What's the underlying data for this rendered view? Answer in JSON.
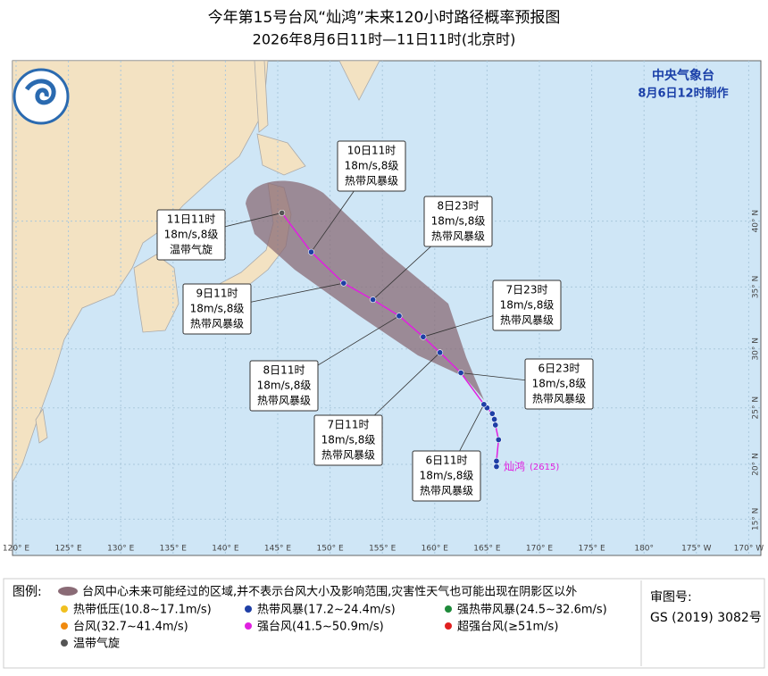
{
  "header": {
    "title": "今年第15号台风“灿鸿”未来120小时路径概率预报图",
    "subtitle": "2026年8月6日11时—11日11时(北京时)"
  },
  "agency": {
    "name": "中央气象台",
    "issued": "8月6日12时制作"
  },
  "storm": {
    "name": "灿鸿",
    "code": "(2615)"
  },
  "map": {
    "lon_ticks": [
      {
        "value": 120,
        "label": "120° E"
      },
      {
        "value": 125,
        "label": "125° E"
      },
      {
        "value": 130,
        "label": "130° E"
      },
      {
        "value": 135,
        "label": "135° E"
      },
      {
        "value": 140,
        "label": "140° E"
      },
      {
        "value": 145,
        "label": "145° E"
      },
      {
        "value": 150,
        "label": "150° E"
      },
      {
        "value": 155,
        "label": "155° E"
      },
      {
        "value": 160,
        "label": "160° E"
      },
      {
        "value": 165,
        "label": "165° E"
      },
      {
        "value": 170,
        "label": "170° E"
      },
      {
        "value": 175,
        "label": "175° E"
      },
      {
        "value": 180,
        "label": "180°"
      },
      {
        "value": 185,
        "label": "175° W"
      },
      {
        "value": 190,
        "label": "170° W"
      }
    ],
    "lat_ticks": [
      {
        "value": 15,
        "label": "15° N"
      },
      {
        "value": 20,
        "label": "20° N"
      },
      {
        "value": 25,
        "label": "25° N"
      },
      {
        "value": 30,
        "label": "30° N"
      },
      {
        "value": 35,
        "label": "35° N"
      },
      {
        "value": 40,
        "label": "40° N"
      }
    ],
    "track_color": "#e020e0",
    "track": [
      {
        "lon": 165.9,
        "lat": 19.8,
        "color": "#1f3fa6"
      },
      {
        "lon": 165.9,
        "lat": 20.3,
        "color": "#1f3fa6"
      },
      {
        "lon": 166.1,
        "lat": 22.2,
        "color": "#1f3fa6"
      },
      {
        "lon": 165.8,
        "lat": 23.5,
        "color": "#1f3fa6"
      },
      {
        "lon": 165.7,
        "lat": 24.0,
        "color": "#1f3fa6"
      },
      {
        "lon": 165.5,
        "lat": 24.5,
        "color": "#1f3fa6"
      },
      {
        "lon": 165.0,
        "lat": 25.0,
        "color": "#1f3fa6"
      },
      {
        "lon": 164.7,
        "lat": 25.3,
        "color": "#1f3fa6"
      },
      {
        "lon": 162.5,
        "lat": 28.0,
        "color": "#1f3fa6"
      },
      {
        "lon": 160.5,
        "lat": 29.7,
        "color": "#1f3fa6"
      },
      {
        "lon": 158.9,
        "lat": 31.0,
        "color": "#1f3fa6"
      },
      {
        "lon": 156.6,
        "lat": 32.7,
        "color": "#1f3fa6"
      },
      {
        "lon": 154.1,
        "lat": 34.0,
        "color": "#1f3fa6"
      },
      {
        "lon": 151.3,
        "lat": 35.3,
        "color": "#1f3fa6"
      },
      {
        "lon": 148.2,
        "lat": 37.7,
        "color": "#1f3fa6"
      },
      {
        "lon": 145.4,
        "lat": 40.6,
        "color": "#555555"
      }
    ],
    "callouts": [
      {
        "time": "6日11时",
        "speed": "18m/s,8级",
        "level": "热带风暴级"
      },
      {
        "time": "6日23时",
        "speed": "18m/s,8级",
        "level": "热带风暴级"
      },
      {
        "time": "7日11时",
        "speed": "18m/s,8级",
        "level": "热带风暴级"
      },
      {
        "time": "7日23时",
        "speed": "18m/s,8级",
        "level": "热带风暴级"
      },
      {
        "time": "8日11时",
        "speed": "18m/s,8级",
        "level": "热带风暴级"
      },
      {
        "time": "8日23时",
        "speed": "18m/s,8级",
        "level": "热带风暴级"
      },
      {
        "time": "9日11时",
        "speed": "18m/s,8级",
        "level": "热带风暴级"
      },
      {
        "time": "10日11时",
        "speed": "18m/s,8级",
        "level": "热带风暴级"
      },
      {
        "time": "11日11时",
        "speed": "18m/s,8级",
        "level": "温带气旋"
      }
    ]
  },
  "legend": {
    "title": "图例:",
    "cone": "台风中心未来可能经过的区域,并不表示台风大小及影响范围,灾害性天气也可能出现在阴影区以外",
    "items": [
      {
        "label": "热带低压(10.8~17.1m/s)",
        "color": "#f0c020"
      },
      {
        "label": "热带风暴(17.2~24.4m/s)",
        "color": "#1f3fa6"
      },
      {
        "label": "强热带风暴(24.5~32.6m/s)",
        "color": "#1e8a3a"
      },
      {
        "label": "台风(32.7~41.4m/s)",
        "color": "#f08a10"
      },
      {
        "label": "强台风(41.5~50.9m/s)",
        "color": "#e020e0"
      },
      {
        "label": "超强台风(≥51m/s)",
        "color": "#e02020"
      },
      {
        "label": "温带气旋",
        "color": "#555555"
      }
    ]
  },
  "review": {
    "label": "审图号:",
    "number": "GS (2019) 3082号"
  }
}
